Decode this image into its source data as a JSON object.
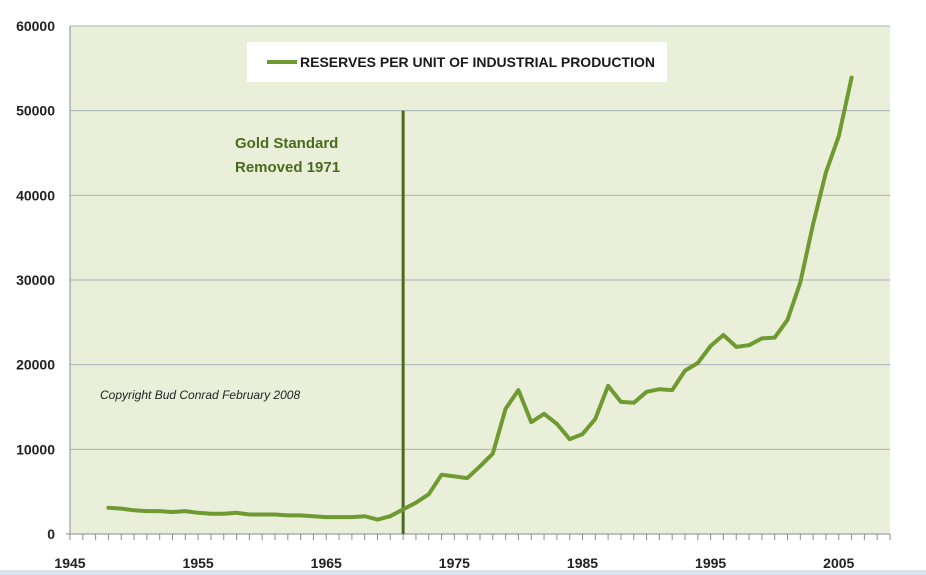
{
  "chart_data": {
    "type": "line",
    "title": "",
    "xlabel": "",
    "ylabel": "",
    "xlim": [
      1945,
      2009
    ],
    "ylim": [
      0,
      60000
    ],
    "x_ticks": [
      "1945",
      "1955",
      "1965",
      "1975",
      "1985",
      "1995",
      "2005"
    ],
    "y_ticks": [
      "0",
      "10000",
      "20000",
      "30000",
      "40000",
      "50000",
      "60000"
    ],
    "grid": "horizontal",
    "legend_position": "top",
    "plot_background": "#e9efd9",
    "series": [
      {
        "name": "RESERVES PER UNIT OF INDUSTRIAL PRODUCTION",
        "color": "#6f9a32",
        "x": [
          1948,
          1949,
          1950,
          1951,
          1952,
          1953,
          1954,
          1955,
          1956,
          1957,
          1958,
          1959,
          1960,
          1961,
          1962,
          1963,
          1964,
          1965,
          1966,
          1967,
          1968,
          1969,
          1970,
          1971,
          1972,
          1973,
          1974,
          1975,
          1976,
          1977,
          1978,
          1979,
          1980,
          1981,
          1982,
          1983,
          1984,
          1985,
          1986,
          1987,
          1988,
          1989,
          1990,
          1991,
          1992,
          1993,
          1994,
          1995,
          1996,
          1997,
          1998,
          1999,
          2000,
          2001,
          2002,
          2003,
          2004,
          2005,
          2006
        ],
        "values": [
          3100,
          3000,
          2800,
          2700,
          2700,
          2600,
          2700,
          2500,
          2400,
          2400,
          2500,
          2300,
          2300,
          2300,
          2200,
          2200,
          2100,
          2000,
          2000,
          2000,
          2100,
          1700,
          2100,
          2900,
          3700,
          4700,
          7000,
          6800,
          6600,
          8000,
          9500,
          14800,
          17000,
          13200,
          14200,
          13000,
          11200,
          11800,
          13600,
          17500,
          15600,
          15500,
          16800,
          17100,
          17000,
          19300,
          20200,
          22200,
          23500,
          22100,
          22300,
          23100,
          23200,
          25300,
          29700,
          36600,
          42700,
          47000,
          53900
        ]
      }
    ],
    "annotations": [
      {
        "text_lines": [
          "Gold Standard",
          "Removed 1971"
        ],
        "marker_x": 1971,
        "color": "#4b6a1e"
      },
      {
        "text": "Copyright Bud Conrad  February 2008"
      }
    ]
  }
}
